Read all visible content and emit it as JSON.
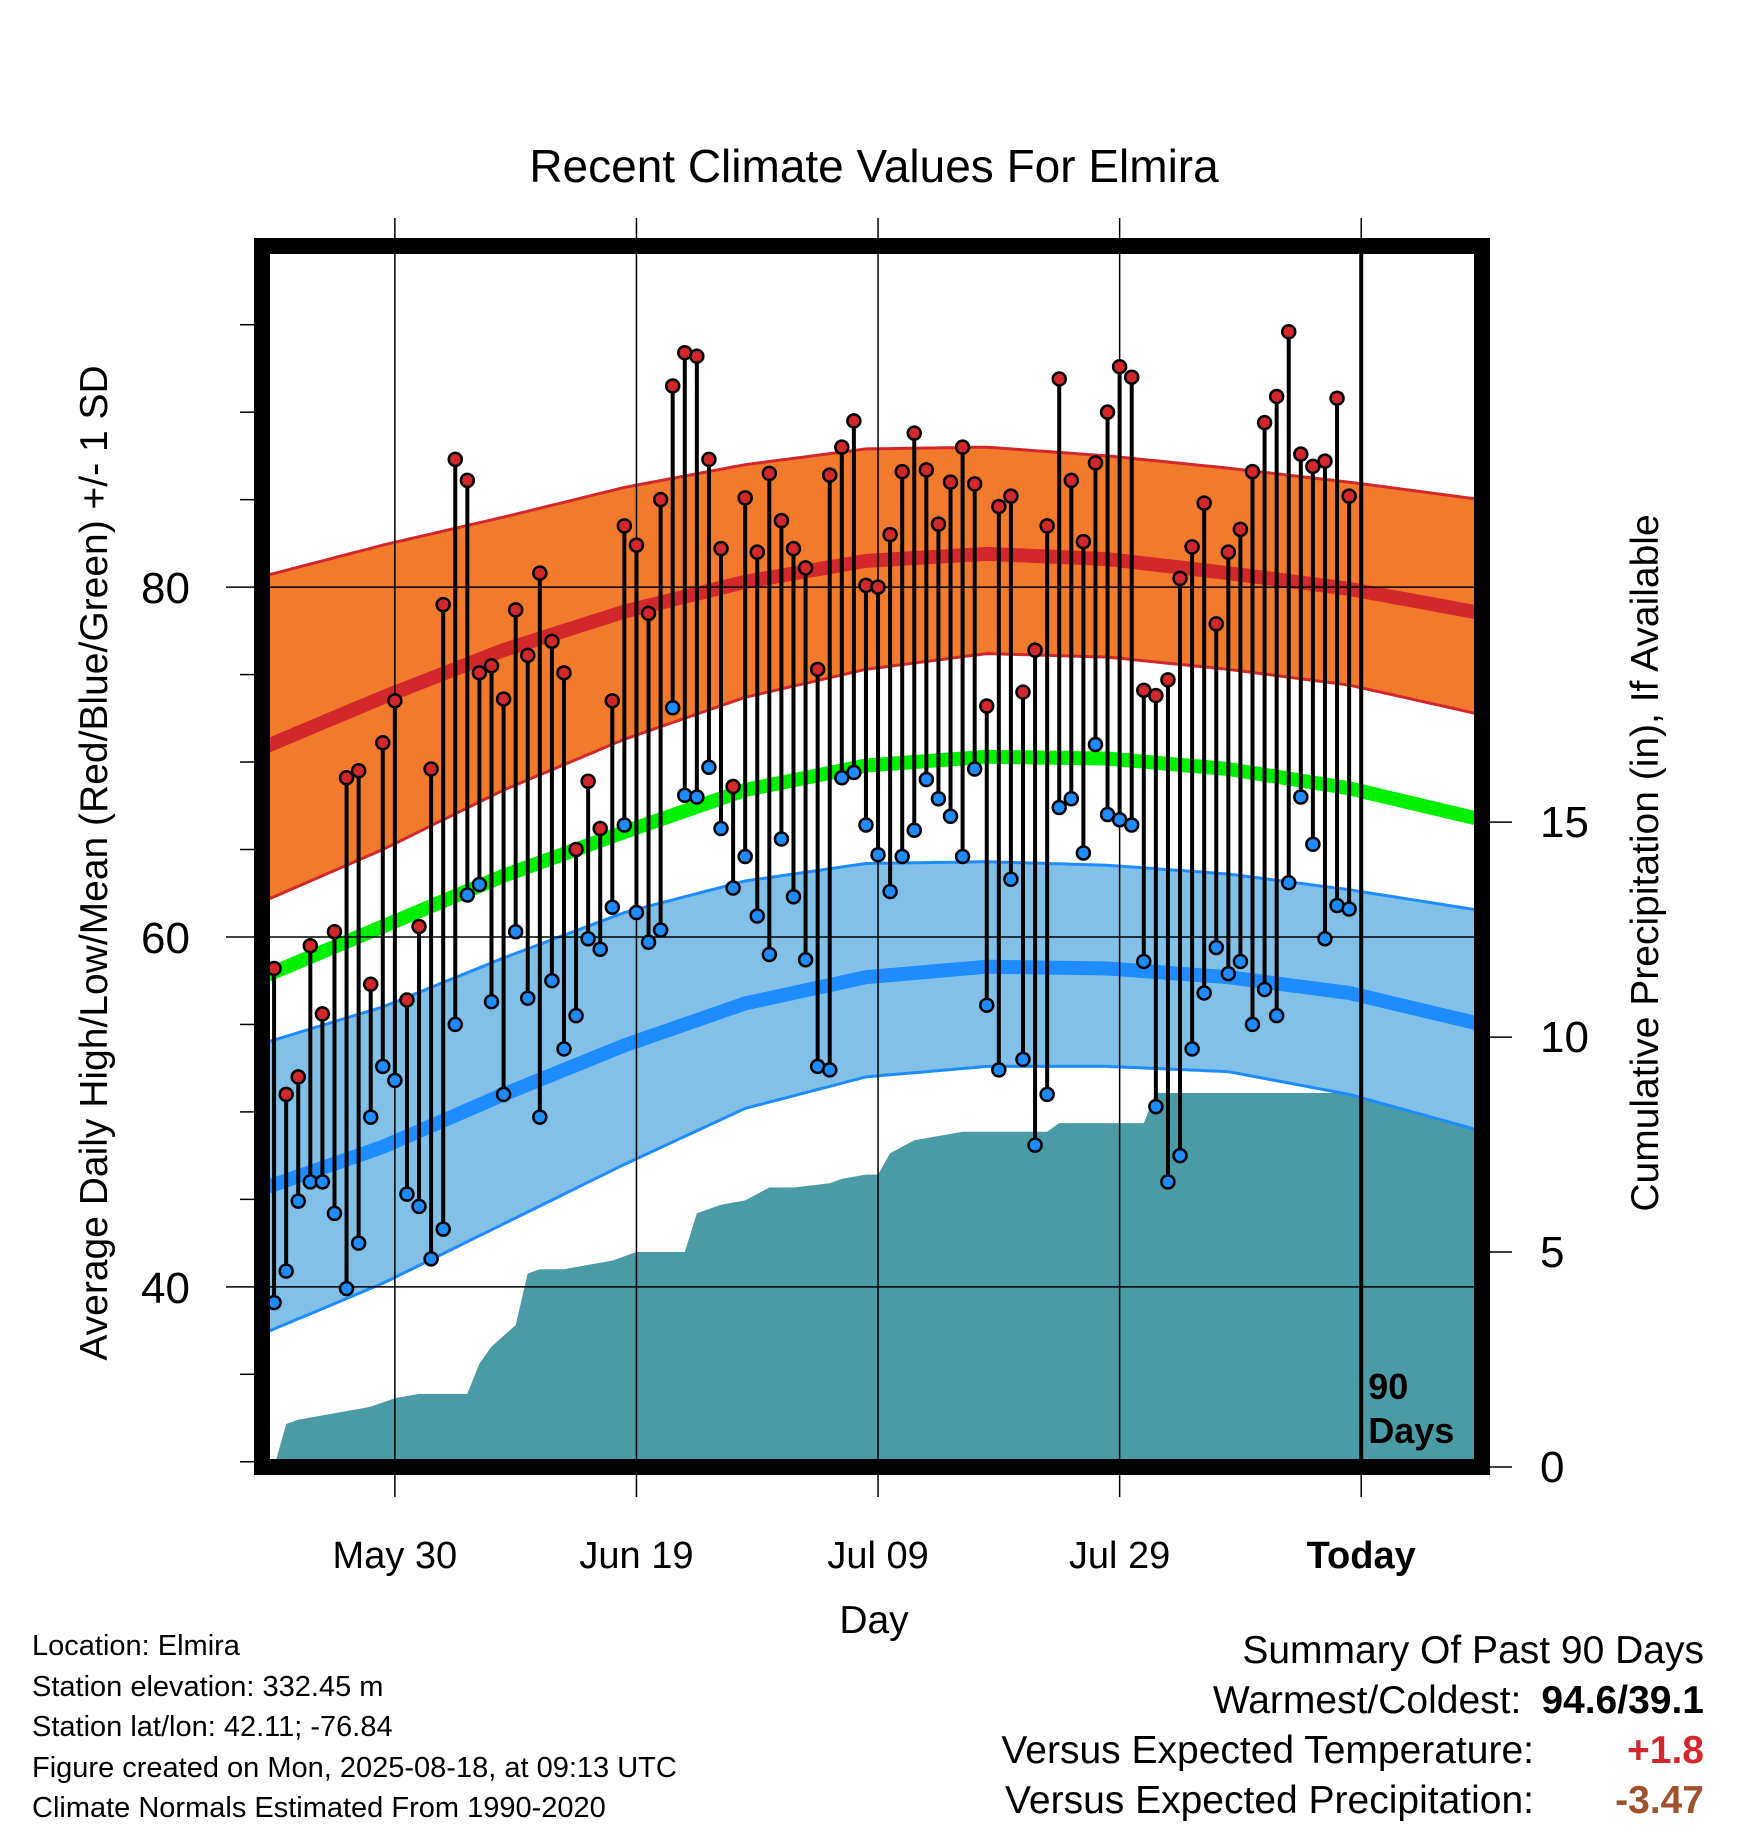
{
  "chart_data": {
    "type": "line",
    "title": "Recent Climate Values For Elmira",
    "xlabel": "Day",
    "ylabel": "Average Daily High/Low/Mean (Red/Blue/Green) +/- 1 SD",
    "y2label": "Cumulative Precipitation (in), If Available",
    "x_ticks": [
      "May 30",
      "Jun 19",
      "Jul 09",
      "Jul 29",
      "Today"
    ],
    "x_tick_days": [
      11,
      31,
      51,
      71,
      91
    ],
    "x_range_days": [
      0,
      101
    ],
    "ylim": [
      29.7,
      99.5
    ],
    "y_ticks": [
      40,
      60,
      80
    ],
    "y2lim": [
      0,
      28.4
    ],
    "y2_ticks": [
      0,
      5,
      10,
      15
    ],
    "marker_label": "90\nDays",
    "grid": true,
    "colors": {
      "high_band": "#f27a2d",
      "high_line": "#d2282b",
      "low_band": "#82c0e8",
      "low_line": "#1e8cff",
      "mean_line": "#00f000",
      "precip": "#4a9ba5",
      "high_point": "#d2282b",
      "low_point": "#1e8cff"
    },
    "normals": {
      "days": [
        0,
        10,
        20,
        30,
        40,
        50,
        60,
        70,
        80,
        90,
        101
      ],
      "high": [
        70.8,
        73.7,
        76.4,
        78.6,
        80.3,
        81.5,
        81.9,
        81.6,
        80.8,
        79.9,
        78.5
      ],
      "high_upper": [
        80.6,
        82.4,
        84.0,
        85.7,
        87.0,
        87.9,
        88.0,
        87.5,
        86.8,
        86.0,
        85.0
      ],
      "high_lower": [
        62.0,
        65.0,
        68.4,
        71.3,
        73.7,
        75.3,
        76.2,
        76.0,
        75.3,
        74.4,
        72.7
      ],
      "low": [
        45.6,
        48.0,
        51.0,
        53.8,
        56.2,
        57.7,
        58.3,
        58.2,
        57.7,
        56.8,
        55.0
      ],
      "low_upper": [
        53.9,
        56.0,
        58.8,
        61.4,
        63.2,
        64.2,
        64.3,
        64.1,
        63.6,
        62.7,
        61.5
      ],
      "low_lower": [
        37.3,
        40.2,
        43.6,
        47.0,
        50.2,
        52.0,
        52.6,
        52.6,
        52.3,
        51.0,
        48.9
      ],
      "mean": [
        57.7,
        60.6,
        63.5,
        66.0,
        68.4,
        69.8,
        70.3,
        70.2,
        69.6,
        68.5,
        66.7
      ]
    },
    "series": [
      {
        "name": "High",
        "values": [
          58.2,
          51.0,
          52.0,
          59.5,
          55.6,
          60.3,
          69.1,
          69.5,
          57.3,
          71.1,
          73.5,
          56.4,
          60.6,
          69.6,
          79.0,
          87.3,
          86.1,
          75.1,
          75.5,
          73.6,
          78.7,
          76.1,
          80.8,
          76.9,
          75.1,
          65.0,
          68.9,
          66.2,
          73.5,
          83.5,
          82.4,
          78.5,
          85.0,
          91.5,
          93.4,
          93.2,
          87.3,
          82.2,
          68.6,
          85.1,
          82.0,
          86.5,
          83.8,
          82.2,
          81.1,
          75.3,
          86.4,
          88.0,
          89.5,
          80.1,
          80.0,
          83.0,
          86.6,
          88.8,
          86.7,
          83.6,
          86.0,
          88.0,
          85.9,
          73.2,
          84.6,
          85.2,
          74.0,
          76.4,
          83.5,
          91.9,
          86.1,
          82.6,
          87.1,
          90.0,
          92.6,
          92.0,
          74.1,
          73.8,
          74.7,
          80.5,
          82.3,
          84.8,
          77.9,
          82.0,
          83.3,
          86.6,
          89.4,
          90.9,
          94.6,
          87.6,
          86.9,
          87.2,
          90.8,
          85.2
        ]
      },
      {
        "name": "Low",
        "values": [
          39.1,
          40.9,
          44.9,
          46.0,
          46.0,
          44.2,
          39.9,
          42.5,
          49.7,
          52.6,
          51.8,
          45.3,
          44.6,
          41.6,
          43.3,
          55.0,
          62.4,
          63.0,
          56.3,
          51.0,
          60.3,
          56.5,
          49.7,
          57.5,
          53.6,
          55.5,
          59.9,
          59.3,
          61.7,
          66.4,
          61.4,
          59.7,
          60.4,
          73.1,
          68.1,
          68.0,
          69.7,
          66.2,
          62.8,
          64.6,
          61.2,
          59.0,
          65.6,
          62.3,
          58.7,
          52.6,
          52.4,
          69.1,
          69.4,
          66.4,
          64.7,
          62.6,
          64.6,
          66.1,
          69.0,
          67.9,
          66.9,
          64.6,
          69.6,
          56.1,
          52.4,
          63.3,
          53.0,
          48.1,
          51.0,
          67.4,
          67.9,
          64.8,
          71.0,
          67.0,
          66.7,
          66.4,
          58.6,
          50.3,
          46.0,
          47.5,
          53.6,
          56.8,
          59.4,
          57.9,
          58.6,
          55.0,
          57.0,
          55.5,
          63.1,
          68.0,
          65.3,
          59.9,
          61.8,
          61.6
        ]
      },
      {
        "name": "Cumulative Precipitation",
        "x": [
          1,
          2,
          3,
          5,
          7,
          9,
          11,
          13,
          15,
          17,
          18,
          19,
          21,
          22,
          23,
          25,
          27,
          29,
          31,
          35,
          36,
          38,
          40,
          42,
          44,
          47,
          48,
          50,
          51,
          52,
          54,
          58,
          60,
          65,
          66,
          68,
          73,
          74,
          76,
          91,
          101
        ],
        "values": [
          0.0,
          1.0,
          1.1,
          1.2,
          1.3,
          1.4,
          1.6,
          1.7,
          1.7,
          1.7,
          2.4,
          2.8,
          3.3,
          4.5,
          4.6,
          4.6,
          4.7,
          4.8,
          5.0,
          5.0,
          5.9,
          6.1,
          6.2,
          6.5,
          6.5,
          6.6,
          6.7,
          6.8,
          6.8,
          7.3,
          7.6,
          7.8,
          7.8,
          7.8,
          8.0,
          8.0,
          8.0,
          8.7,
          8.7,
          8.7,
          8.7
        ]
      }
    ]
  },
  "footer": {
    "location": "Location: Elmira",
    "elevation": "Station elevation: 332.45 m",
    "latlon": "Station lat/lon: 42.11; -76.84",
    "created": "Figure created on Mon, 2025-08-18, at 09:13 UTC",
    "normals": "Climate Normals Estimated From 1990-2020"
  },
  "summary": {
    "title": "Summary Of Past 90 Days",
    "warmest_coldest_label": "Warmest/Coldest:",
    "warmest_coldest_value": "94.6/39.1",
    "temp_label": "Versus Expected Temperature:",
    "temp_value": "+1.8",
    "temp_color": "#d2282b",
    "precip_label": "Versus Expected Precipitation:",
    "precip_value": "-3.47",
    "precip_color": "#a0522d"
  }
}
